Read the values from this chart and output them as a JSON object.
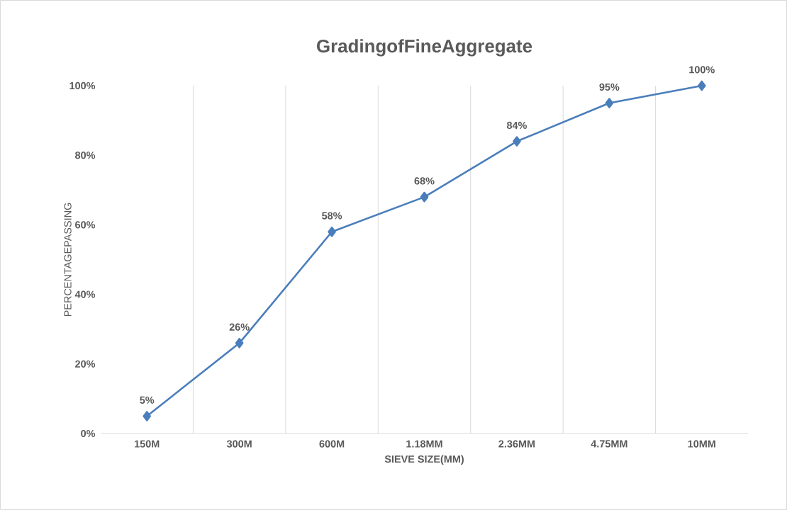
{
  "chart_data": {
    "type": "line",
    "title": "GradingofFineAggregate",
    "xlabel": "SIEVE SIZE(MM)",
    "ylabel": "PERCENTAGEPASSING",
    "categories": [
      "150M",
      "300M",
      "600M",
      "1.18MM",
      "2.36MM",
      "4.75MM",
      "10MM"
    ],
    "series": [
      {
        "color": "#4a7ebb",
        "values": [
          5,
          26,
          58,
          68,
          84,
          95,
          100
        ],
        "value_labels": [
          "5%",
          "26%",
          "58%",
          "68%",
          "84%",
          "95%",
          "100%"
        ]
      }
    ],
    "ylim": [
      0,
      100
    ],
    "yticks": [
      {
        "value": 0,
        "label": "0%"
      },
      {
        "value": 20,
        "label": "20%"
      },
      {
        "value": 40,
        "label": "40%"
      },
      {
        "value": 60,
        "label": "60%"
      },
      {
        "value": 80,
        "label": "80%"
      },
      {
        "value": 100,
        "label": "100%"
      }
    ],
    "grid": "x",
    "marker": "diamond",
    "line_style": "solid"
  }
}
